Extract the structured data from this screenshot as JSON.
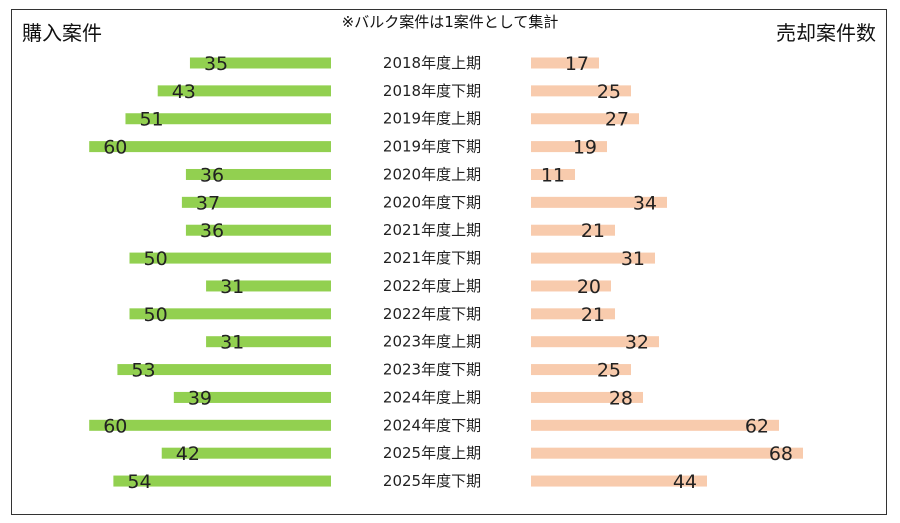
{
  "chart_data": {
    "type": "bar",
    "layout": "butterfly",
    "left_label": "購入案件",
    "right_label": "売却案件数",
    "note": "※バルク案件は1案件として集計",
    "categories": [
      "2018年度上期",
      "2018年度下期",
      "2019年度上期",
      "2019年度下期",
      "2020年度上期",
      "2020年度下期",
      "2021年度上期",
      "2021年度下期",
      "2022年度上期",
      "2022年度下期",
      "2023年度上期",
      "2023年度下期",
      "2024年度上期",
      "2024年度下期",
      "2025年度上期",
      "2025年度下期"
    ],
    "series": [
      {
        "name": "購入案件",
        "side": "left",
        "color": "#92d050",
        "values": [
          35,
          43,
          51,
          60,
          36,
          37,
          36,
          50,
          31,
          50,
          31,
          53,
          39,
          60,
          42,
          54
        ]
      },
      {
        "name": "売却案件数",
        "side": "right",
        "color": "#f8cbad",
        "values": [
          17,
          25,
          27,
          19,
          11,
          34,
          21,
          31,
          20,
          21,
          32,
          25,
          28,
          62,
          68,
          44
        ]
      }
    ],
    "grid": false
  }
}
